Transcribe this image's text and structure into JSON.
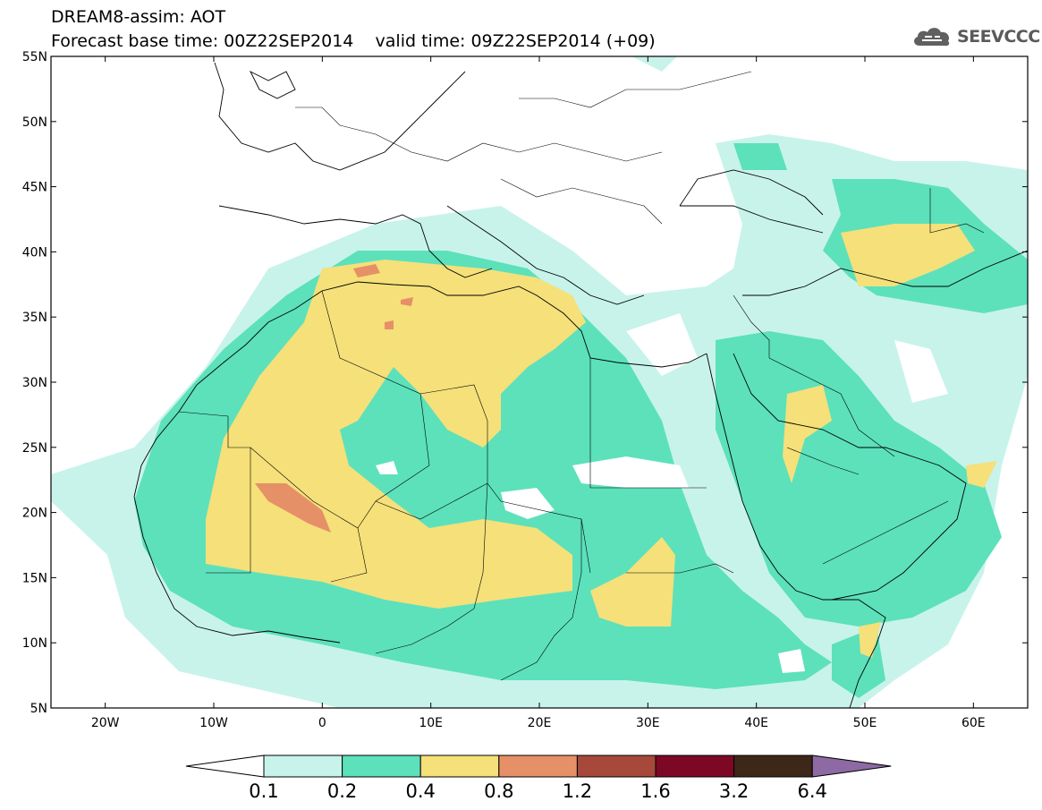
{
  "header": {
    "title_line1": "DREAM8-assim: AOT",
    "title_line2": "Forecast base time: 00Z22SEP2014    valid time: 09Z22SEP2014 (+09)",
    "logo_text": "SEEVCCC"
  },
  "map": {
    "lat_labels": [
      "55N",
      "50N",
      "45N",
      "40N",
      "35N",
      "30N",
      "25N",
      "20N",
      "15N",
      "10N",
      "5N"
    ],
    "lon_labels": [
      "20W",
      "10W",
      "0",
      "10E",
      "20E",
      "30E",
      "40E",
      "50E",
      "60E"
    ],
    "extent": {
      "lon_min": -25,
      "lon_max": 65,
      "lat_min": 5,
      "lat_max": 55
    },
    "field": "aerosol optical thickness (AOT)"
  },
  "colorbar": {
    "levels": [
      "0.1",
      "0.2",
      "0.4",
      "0.8",
      "1.2",
      "1.6",
      "3.2",
      "6.4"
    ],
    "colors": [
      "#ffffff",
      "#c8f3ea",
      "#5ce1bb",
      "#f5e07a",
      "#e69068",
      "#a7493a",
      "#7c0826",
      "#3d2718",
      "#8d6aa3"
    ]
  }
}
